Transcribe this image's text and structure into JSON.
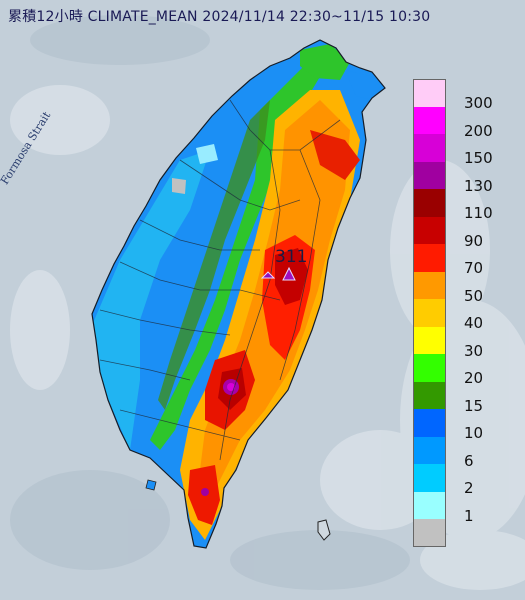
{
  "title": "累積12小時 CLIMATE_MEAN 2024/11/14 22:30~11/15 10:30",
  "strait_label": "Formosa Strait",
  "peak_label": "311",
  "legend": {
    "items": [
      {
        "label": "300",
        "color": "#ffccf7"
      },
      {
        "label": "200",
        "color": "#ff00ff"
      },
      {
        "label": "150",
        "color": "#d700d7"
      },
      {
        "label": "130",
        "color": "#a000a0"
      },
      {
        "label": "110",
        "color": "#9a0000"
      },
      {
        "label": "90",
        "color": "#c80000"
      },
      {
        "label": "70",
        "color": "#ff1b00"
      },
      {
        "label": "50",
        "color": "#ff9900"
      },
      {
        "label": "40",
        "color": "#ffcc00"
      },
      {
        "label": "30",
        "color": "#ffff00"
      },
      {
        "label": "20",
        "color": "#33ff00"
      },
      {
        "label": "15",
        "color": "#339900"
      },
      {
        "label": "10",
        "color": "#0066ff"
      },
      {
        "label": "6",
        "color": "#0099ff"
      },
      {
        "label": "2",
        "color": "#00ccff"
      },
      {
        "label": "1",
        "color": "#99ffff"
      },
      {
        "label": "",
        "color": "#c1c1c1"
      }
    ]
  }
}
